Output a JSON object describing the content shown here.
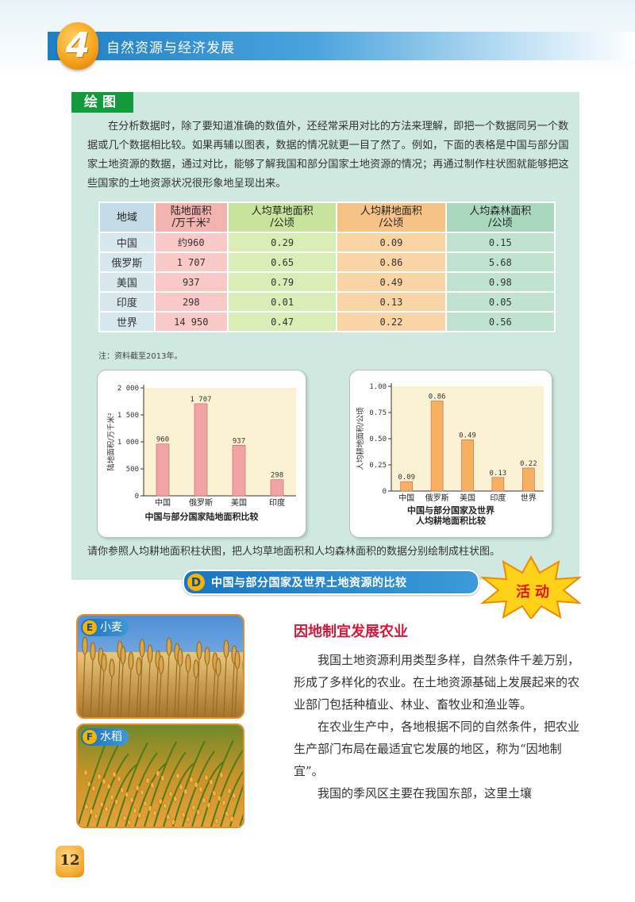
{
  "header": {
    "chapter_number": "4",
    "chapter_title": "自然资源与经济发展"
  },
  "section_tag": "绘图",
  "intro_text": "在分析数据时，除了要知道准确的数值外，还经常采用对比的方法来理解，即把一个数据同另一个数据或几个数据相比较。如果再辅以图表，数据的情况就更一目了然了。例如，下面的表格是中国与部分国家土地资源的数据，通过对比，能够了解我国和部分国家土地资源的情况；再通过制作柱状图就能够把这些国家的土地资源状况很形象地呈现出来。",
  "table": {
    "headers": [
      "地域",
      "陆地面积\n/万千米²",
      "人均草地面积\n/公顷",
      "人均耕地面积\n/公顷",
      "人均森林面积\n/公顷"
    ],
    "rows": [
      [
        "中国",
        "约960",
        "0.29",
        "0.09",
        "0.15"
      ],
      [
        "俄罗斯",
        "1 707",
        "0.65",
        "0.86",
        "5.68"
      ],
      [
        "美国",
        "937",
        "0.79",
        "0.49",
        "0.98"
      ],
      [
        "印度",
        "298",
        "0.01",
        "0.13",
        "0.05"
      ],
      [
        "世界",
        "14 950",
        "0.47",
        "0.22",
        "0.56"
      ]
    ],
    "note": "注：资料截至2013年。"
  },
  "chart_data": [
    {
      "type": "bar",
      "title": "中国与部分国家陆地面积比较",
      "ylabel": "陆地面积/万千米²",
      "categories": [
        "中国",
        "俄罗斯",
        "美国",
        "印度"
      ],
      "values": [
        960,
        1707,
        937,
        298
      ],
      "value_labels": [
        "960",
        "1 707",
        "937",
        "298"
      ],
      "ylim": [
        0,
        2000
      ],
      "yticks": [
        "0",
        "500",
        "1 000",
        "1 500",
        "2 000"
      ],
      "ytick_values": [
        0,
        500,
        1000,
        1500,
        2000
      ],
      "bar_color": "#f2a3a6",
      "grid": false
    },
    {
      "type": "bar",
      "title": "中国与部分国家及世界人均耕地面积比较",
      "title_lines": [
        "中国与部分国家及世界",
        "人均耕地面积比较"
      ],
      "ylabel": "人均耕地面积/公顷",
      "categories": [
        "中国",
        "俄罗斯",
        "美国",
        "印度",
        "世界"
      ],
      "values": [
        0.09,
        0.86,
        0.49,
        0.13,
        0.22
      ],
      "value_labels": [
        "0.09",
        "0.86",
        "0.49",
        "0.13",
        "0.22"
      ],
      "ylim": [
        0,
        1.0
      ],
      "yticks": [
        "0",
        "0.25",
        "0.50",
        "0.75",
        "1.00"
      ],
      "ytick_values": [
        0,
        0.25,
        0.5,
        0.75,
        1.0
      ],
      "bar_color": "#f7b060",
      "grid": false
    }
  ],
  "instruction": "请你参照人均耕地面积柱状图，把人均草地面积和人均森林面积的数据分别绘制成柱状图。",
  "activity": {
    "letter": "D",
    "title": "中国与部分国家及世界土地资源的比较",
    "badge": "活动"
  },
  "photos": [
    {
      "letter": "E",
      "caption": "小麦"
    },
    {
      "letter": "F",
      "caption": "水稻"
    }
  ],
  "subheading": "因地制宜发展农业",
  "paragraphs": [
    "我国土地资源利用类型多样，自然条件千差万别，形成了多样化的农业。在土地资源基础上发展起来的农业部门包括种植业、林业、畜牧业和渔业等。",
    "在农业生产中，各地根据不同的自然条件，把农业生产部门布局在最适宜它发展的地区，称为“因地制宜”。",
    "我国的季风区主要在我国东部，这里土壤"
  ],
  "page_number": "12",
  "colors": {
    "header_blue": "#1f7fc4",
    "panel_bg": "#cfe9e1",
    "tag_green": "#139a3c",
    "heading_red": "#d4183a"
  }
}
